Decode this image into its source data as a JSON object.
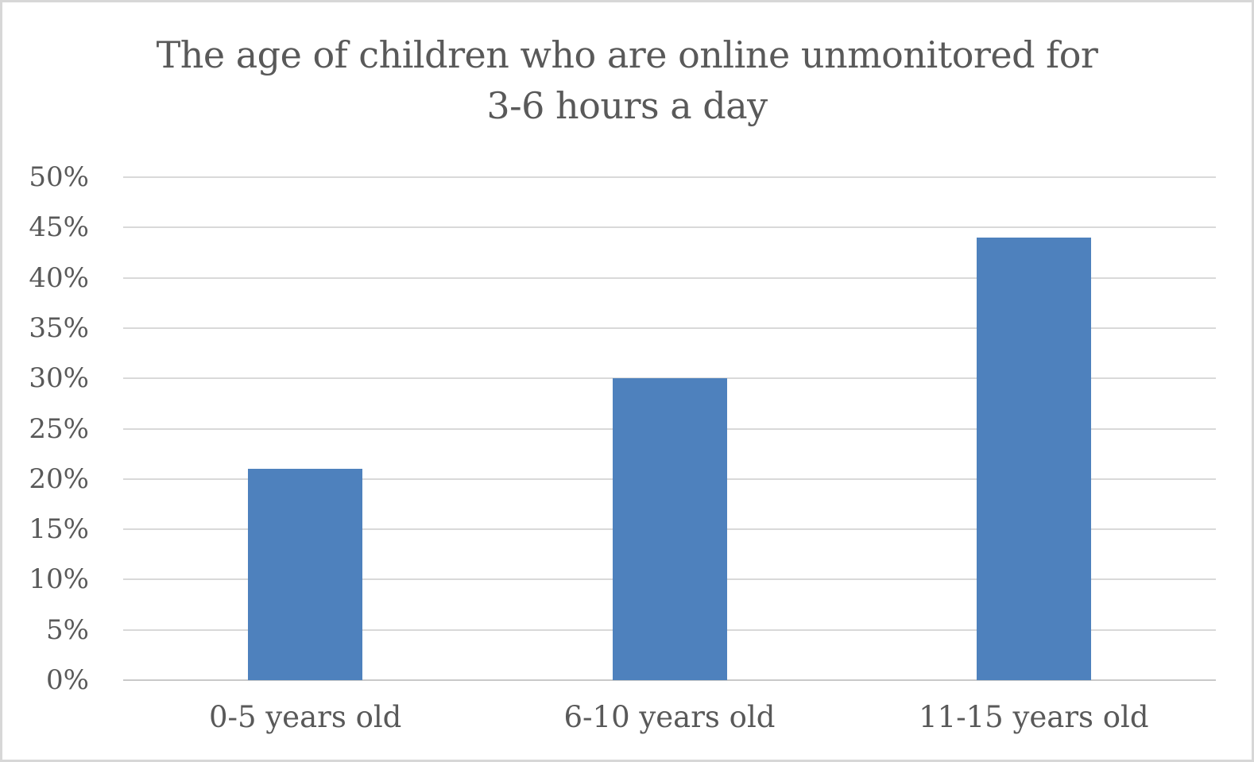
{
  "chart_data": {
    "type": "bar",
    "title": "The age of children who are online unmonitored for 3-6 hours a day",
    "title_lines": [
      "The age of children who are online unmonitored for",
      "3-6 hours a day"
    ],
    "categories": [
      "0-5 years old",
      "6-10 years old",
      "11-15 years old"
    ],
    "values": [
      21,
      30,
      44
    ],
    "value_unit": "%",
    "xlabel": "",
    "ylabel": "",
    "ylim": [
      0,
      50
    ],
    "ytick_step": 5,
    "ytick_labels": [
      "0%",
      "5%",
      "10%",
      "15%",
      "20%",
      "25%",
      "30%",
      "35%",
      "40%",
      "45%",
      "50%"
    ],
    "grid": true,
    "legend": false,
    "colors": {
      "bar": "#4e81bd",
      "gridline": "#d9d9d9",
      "axis_line": "#c9c9c9",
      "text": "#595959",
      "background": "#ffffff",
      "frame_border": "#d7d7d7"
    }
  }
}
